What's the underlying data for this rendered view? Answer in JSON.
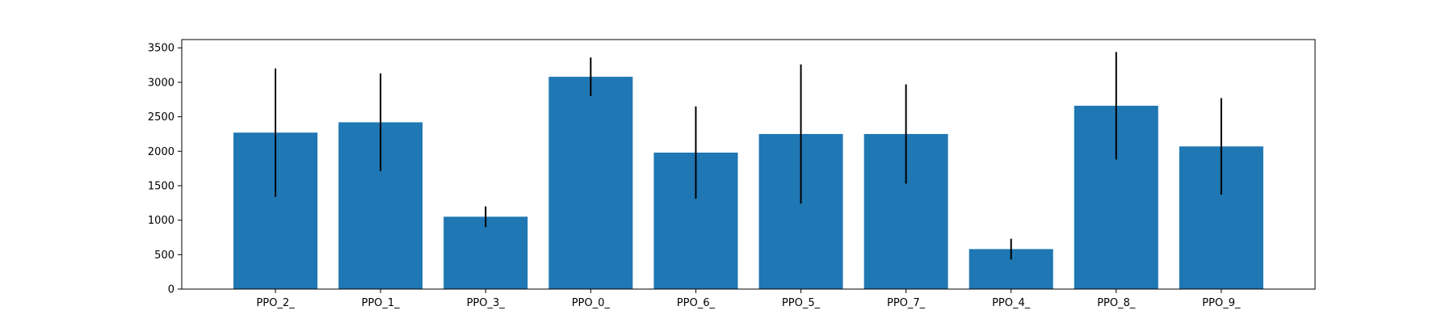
{
  "chart_data": {
    "type": "bar",
    "categories": [
      "PPO_2_",
      "PPO_1_",
      "PPO_3_",
      "PPO_0_",
      "PPO_6_",
      "PPO_5_",
      "PPO_7_",
      "PPO_4_",
      "PPO_8_",
      "PPO_9_"
    ],
    "values": [
      2270,
      2420,
      1050,
      3080,
      1980,
      2250,
      2250,
      580,
      2660,
      2070
    ],
    "error": [
      930,
      710,
      150,
      280,
      670,
      1010,
      720,
      150,
      780,
      700
    ],
    "title": "",
    "xlabel": "",
    "ylabel": "",
    "ylim": [
      0,
      3620
    ],
    "yticks": [
      0,
      500,
      1000,
      1500,
      2000,
      2500,
      3000,
      3500
    ],
    "grid": false,
    "colors": {
      "bar": "#1f77b4",
      "error_bar": "#000000",
      "axis": "#000000"
    }
  }
}
